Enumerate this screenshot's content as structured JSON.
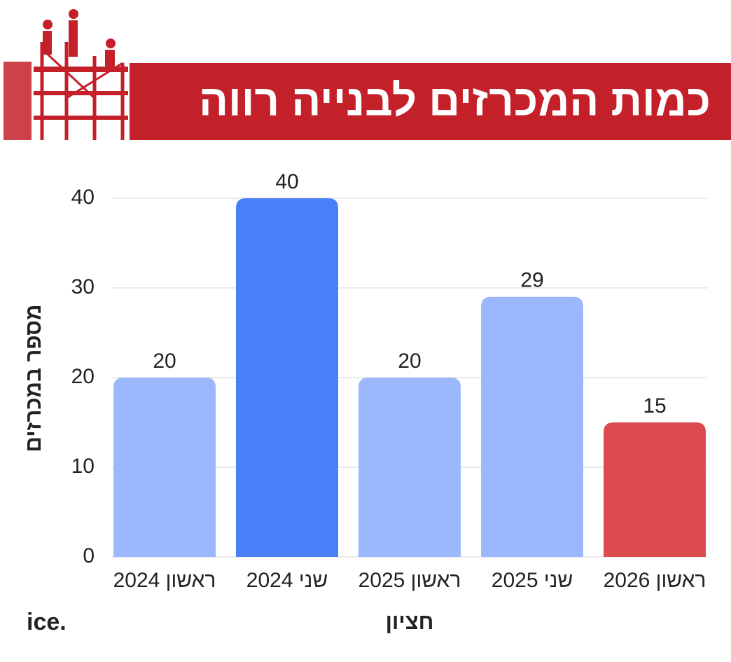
{
  "chart_data": {
    "type": "bar",
    "title": "כמות המכרזים לבנייה רווה",
    "xlabel": "חציון",
    "ylabel": "מספר במכרזים",
    "categories": [
      "ראשון 2024",
      "שני 2024",
      "ראשון 2025",
      "שני 2025",
      "ראשון 2026"
    ],
    "values": [
      20,
      40,
      20,
      29,
      15
    ],
    "colors": [
      "#9ab8fb",
      "#4a80f7",
      "#9ab8fb",
      "#9ab8fb",
      "#dc4b50"
    ],
    "ylim": [
      0,
      40
    ],
    "yticks": [
      0,
      10,
      20,
      30,
      40
    ],
    "grid": true,
    "logo": "ice."
  }
}
